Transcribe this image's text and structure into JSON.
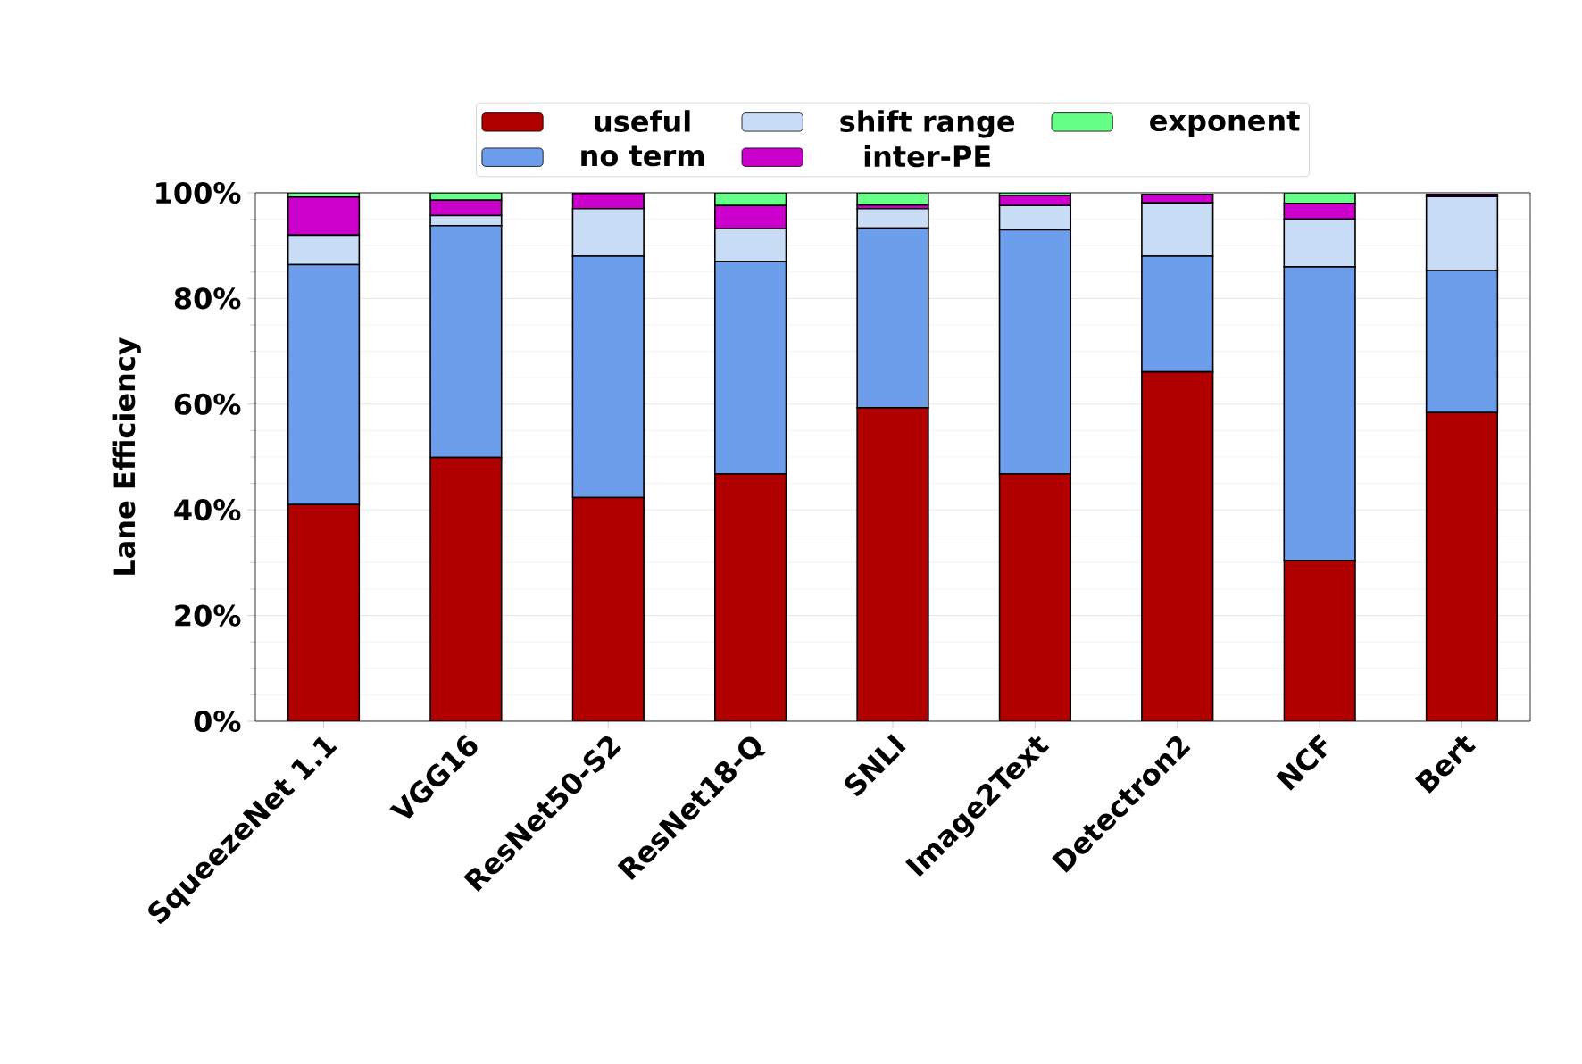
{
  "chart_data": {
    "type": "bar",
    "stacked": true,
    "ylabel": "Lane Efficiency",
    "categories": [
      "SqueezeNet 1.1",
      "VGG16",
      "ResNet50-S2",
      "ResNet18-Q",
      "SNLI",
      "Image2Text",
      "Detectron2",
      "NCF",
      "Bert"
    ],
    "series": [
      {
        "name": "useful",
        "color": "#b00000",
        "values": [
          41.0,
          49.9,
          42.3,
          46.8,
          59.3,
          46.8,
          66.1,
          30.4,
          58.4
        ]
      },
      {
        "name": "no term",
        "color": "#6d9eeb",
        "values": [
          45.4,
          43.9,
          45.7,
          40.2,
          34.0,
          46.2,
          21.9,
          55.6,
          26.9
        ]
      },
      {
        "name": "shift range",
        "color": "#c9dcf5",
        "values": [
          5.6,
          1.9,
          9.0,
          6.2,
          3.7,
          4.6,
          10.1,
          9.0,
          14.0
        ]
      },
      {
        "name": "inter-PE",
        "color": "#cc00cc",
        "values": [
          7.2,
          2.9,
          2.9,
          4.4,
          0.7,
          1.9,
          1.6,
          3.0,
          0.4
        ]
      },
      {
        "name": "exponent",
        "color": "#66ff88",
        "values": [
          0.8,
          1.4,
          null,
          2.4,
          2.3,
          0.5,
          null,
          2.0,
          null
        ]
      }
    ],
    "ylim": [
      0,
      100
    ],
    "yticks": [
      {
        "value": 0,
        "label": "0%"
      },
      {
        "value": 20,
        "label": "20%"
      },
      {
        "value": 40,
        "label": "40%"
      },
      {
        "value": 60,
        "label": "60%"
      },
      {
        "value": 80,
        "label": "80%"
      },
      {
        "value": 100,
        "label": "100%"
      }
    ],
    "grid": "y",
    "legend": "top"
  }
}
